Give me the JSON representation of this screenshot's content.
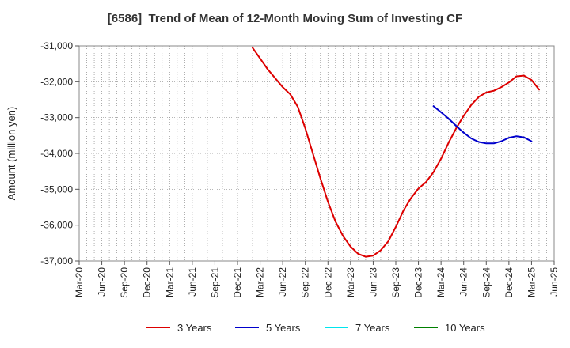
{
  "chart_data": {
    "type": "line",
    "title": "[6586]  Trend of Mean of 12-Month Moving Sum of Investing CF",
    "ylabel": "Amount (million yen)",
    "xlabel": "",
    "ylim": [
      -37000,
      -31000
    ],
    "yticks": [
      -31000,
      -32000,
      -33000,
      -34000,
      -35000,
      -36000,
      -37000
    ],
    "ytick_labels": [
      "-31,000",
      "-32,000",
      "-33,000",
      "-34,000",
      "-35,000",
      "-36,000",
      "-37,000"
    ],
    "xtick_labels": [
      "Mar-20",
      "Jun-20",
      "Sep-20",
      "Dec-20",
      "Mar-21",
      "Jun-21",
      "Sep-21",
      "Dec-21",
      "Mar-22",
      "Jun-22",
      "Sep-22",
      "Dec-22",
      "Mar-23",
      "Jun-23",
      "Sep-23",
      "Dec-23",
      "Mar-24",
      "Jun-24",
      "Sep-24",
      "Dec-24",
      "Mar-25",
      "Jun-25"
    ],
    "grid": true,
    "legend_position": "bottom",
    "series": [
      {
        "name": "3 Years",
        "color": "#dd0000",
        "points": [
          [
            "Feb-22",
            -31050
          ],
          [
            "Mar-22",
            -31350
          ],
          [
            "Apr-22",
            -31650
          ],
          [
            "May-22",
            -31900
          ],
          [
            "Jun-22",
            -32150
          ],
          [
            "Jul-22",
            -32350
          ],
          [
            "Aug-22",
            -32700
          ],
          [
            "Sep-22",
            -33300
          ],
          [
            "Oct-22",
            -34000
          ],
          [
            "Nov-22",
            -34700
          ],
          [
            "Dec-22",
            -35350
          ],
          [
            "Jan-23",
            -35900
          ],
          [
            "Feb-23",
            -36300
          ],
          [
            "Mar-23",
            -36600
          ],
          [
            "Apr-23",
            -36800
          ],
          [
            "May-23",
            -36880
          ],
          [
            "Jun-23",
            -36850
          ],
          [
            "Jul-23",
            -36700
          ],
          [
            "Aug-23",
            -36450
          ],
          [
            "Sep-23",
            -36050
          ],
          [
            "Oct-23",
            -35600
          ],
          [
            "Nov-23",
            -35250
          ],
          [
            "Dec-23",
            -34980
          ],
          [
            "Jan-24",
            -34800
          ],
          [
            "Feb-24",
            -34520
          ],
          [
            "Mar-24",
            -34150
          ],
          [
            "Apr-24",
            -33700
          ],
          [
            "May-24",
            -33300
          ],
          [
            "Jun-24",
            -32950
          ],
          [
            "Jul-24",
            -32650
          ],
          [
            "Aug-24",
            -32420
          ],
          [
            "Sep-24",
            -32300
          ],
          [
            "Oct-24",
            -32250
          ],
          [
            "Nov-24",
            -32150
          ],
          [
            "Dec-24",
            -32020
          ],
          [
            "Jan-25",
            -31850
          ],
          [
            "Feb-25",
            -31830
          ],
          [
            "Mar-25",
            -31950
          ],
          [
            "Apr-25",
            -32220
          ]
        ]
      },
      {
        "name": "5 Years",
        "color": "#0000cc",
        "points": [
          [
            "Feb-24",
            -32680
          ],
          [
            "Mar-24",
            -32850
          ],
          [
            "Apr-24",
            -33030
          ],
          [
            "May-24",
            -33230
          ],
          [
            "Jun-24",
            -33420
          ],
          [
            "Jul-24",
            -33580
          ],
          [
            "Aug-24",
            -33680
          ],
          [
            "Sep-24",
            -33720
          ],
          [
            "Oct-24",
            -33720
          ],
          [
            "Nov-24",
            -33660
          ],
          [
            "Dec-24",
            -33560
          ],
          [
            "Jan-25",
            -33520
          ],
          [
            "Feb-25",
            -33550
          ],
          [
            "Mar-25",
            -33660
          ]
        ]
      },
      {
        "name": "7 Years",
        "color": "#00e5ee",
        "points": []
      },
      {
        "name": "10 Years",
        "color": "#008000",
        "points": []
      }
    ]
  }
}
